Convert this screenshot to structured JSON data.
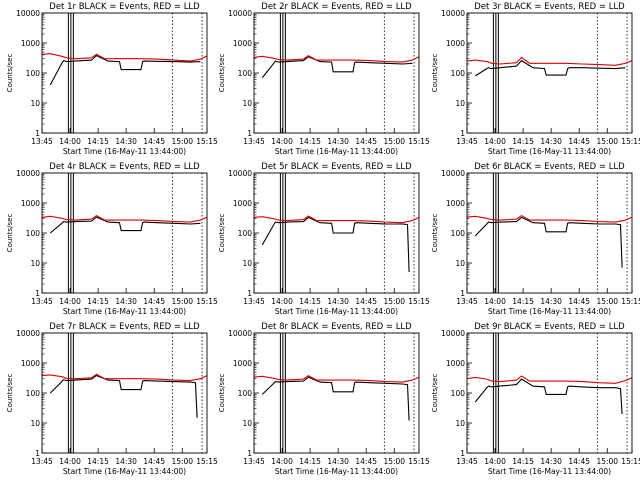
{
  "figure": {
    "xlabel": "Start Time (16-May-11 13:44:00)",
    "ylabel": "Counts/sec"
  },
  "chart_data": [
    {
      "type": "line",
      "title": "Det 1r BLACK = Events, RED = LLD",
      "xlabel": "Start Time (16-May-11 13:44:00)",
      "ylabel": "Counts/sec",
      "y_scale": "log",
      "ylim": [
        1,
        10000
      ],
      "xlim": [
        0,
        100
      ],
      "x_tick_labels": [
        "13:45",
        "14:00",
        "14:15",
        "14:30",
        "14:45",
        "15:00",
        "15:15"
      ],
      "y_tick_labels": [
        "1",
        "10",
        "100",
        "1000",
        "10000"
      ],
      "series": [
        {
          "name": "Events",
          "color": "#000000",
          "x": [
            5,
            12,
            13,
            15,
            20,
            30,
            33,
            40,
            47,
            48,
            60,
            61,
            62,
            70,
            80,
            90,
            96
          ],
          "y": [
            40,
            210,
            260,
            240,
            250,
            270,
            380,
            250,
            240,
            130,
            130,
            240,
            250,
            245,
            240,
            230,
            240
          ]
        },
        {
          "name": "LLD",
          "color": "#dd0000",
          "x": [
            0,
            5,
            12,
            15,
            20,
            30,
            33,
            38,
            50,
            60,
            70,
            80,
            90,
            96,
            100
          ],
          "y": [
            420,
            440,
            360,
            320,
            300,
            320,
            420,
            300,
            300,
            300,
            290,
            270,
            250,
            290,
            370
          ]
        }
      ]
    },
    {
      "type": "line",
      "title": "Det 2r BLACK = Events, RED = LLD",
      "xlabel": "Start Time (16-May-11 13:44:00)",
      "ylabel": "Counts/sec",
      "y_scale": "log",
      "ylim": [
        1,
        10000
      ],
      "xlim": [
        0,
        100
      ],
      "x_tick_labels": [
        "13:45",
        "14:00",
        "14:15",
        "14:30",
        "14:45",
        "15:00",
        "15:15"
      ],
      "y_tick_labels": [
        "1",
        "10",
        "100",
        "1000",
        "10000"
      ],
      "series": [
        {
          "name": "Events",
          "color": "#000000",
          "x": [
            5,
            12,
            13,
            15,
            20,
            30,
            33,
            40,
            47,
            48,
            60,
            61,
            62,
            70,
            80,
            90,
            96
          ],
          "y": [
            70,
            210,
            250,
            230,
            240,
            260,
            350,
            240,
            230,
            110,
            110,
            220,
            230,
            220,
            210,
            200,
            210
          ]
        },
        {
          "name": "LLD",
          "color": "#dd0000",
          "x": [
            0,
            5,
            12,
            15,
            20,
            30,
            33,
            38,
            50,
            60,
            70,
            80,
            90,
            96,
            100
          ],
          "y": [
            330,
            360,
            310,
            280,
            270,
            290,
            380,
            270,
            270,
            270,
            260,
            240,
            230,
            270,
            350
          ]
        }
      ]
    },
    {
      "type": "line",
      "title": "Det 3r BLACK = Events, RED = LLD",
      "xlabel": "Start Time (16-May-11 13:44:00)",
      "ylabel": "Counts/sec",
      "y_scale": "log",
      "ylim": [
        1,
        10000
      ],
      "xlim": [
        0,
        100
      ],
      "x_tick_labels": [
        "13:45",
        "14:00",
        "14:15",
        "14:30",
        "14:45",
        "15:00",
        "15:15"
      ],
      "y_tick_labels": [
        "1",
        "10",
        "100",
        "1000",
        "10000"
      ],
      "series": [
        {
          "name": "Events",
          "color": "#000000",
          "x": [
            5,
            12,
            13,
            15,
            20,
            30,
            33,
            40,
            47,
            48,
            60,
            61,
            62,
            70,
            80,
            90,
            96
          ],
          "y": [
            80,
            140,
            150,
            140,
            150,
            170,
            260,
            150,
            140,
            85,
            85,
            140,
            150,
            150,
            145,
            140,
            150
          ]
        },
        {
          "name": "LLD",
          "color": "#dd0000",
          "x": [
            0,
            5,
            12,
            15,
            20,
            30,
            33,
            38,
            50,
            60,
            70,
            80,
            90,
            96,
            100
          ],
          "y": [
            250,
            270,
            240,
            210,
            200,
            220,
            330,
            210,
            210,
            210,
            200,
            190,
            180,
            210,
            260
          ]
        }
      ]
    },
    {
      "type": "line",
      "title": "Det 4r BLACK = Events, RED = LLD",
      "xlabel": "Start Time (16-May-11 13:44:00)",
      "ylabel": "Counts/sec",
      "y_scale": "log",
      "ylim": [
        1,
        10000
      ],
      "xlim": [
        0,
        100
      ],
      "x_tick_labels": [
        "13:45",
        "14:00",
        "14:15",
        "14:30",
        "14:45",
        "15:00",
        "15:15"
      ],
      "y_tick_labels": [
        "1",
        "10",
        "100",
        "1000",
        "10000"
      ],
      "series": [
        {
          "name": "Events",
          "color": "#000000",
          "x": [
            5,
            12,
            13,
            15,
            20,
            30,
            33,
            40,
            47,
            48,
            60,
            61,
            62,
            70,
            80,
            90,
            96
          ],
          "y": [
            100,
            210,
            240,
            230,
            240,
            250,
            340,
            230,
            220,
            120,
            120,
            220,
            230,
            220,
            210,
            200,
            210
          ]
        },
        {
          "name": "LLD",
          "color": "#dd0000",
          "x": [
            0,
            5,
            12,
            15,
            20,
            30,
            33,
            38,
            50,
            60,
            70,
            80,
            90,
            96,
            100
          ],
          "y": [
            330,
            360,
            310,
            280,
            270,
            290,
            380,
            270,
            270,
            270,
            260,
            240,
            230,
            270,
            340
          ]
        }
      ]
    },
    {
      "type": "line",
      "title": "Det 5r BLACK = Events, RED = LLD",
      "xlabel": "Start Time (16-May-11 13:44:00)",
      "ylabel": "Counts/sec",
      "y_scale": "log",
      "ylim": [
        1,
        10000
      ],
      "xlim": [
        0,
        100
      ],
      "x_tick_labels": [
        "13:45",
        "14:00",
        "14:15",
        "14:30",
        "14:45",
        "15:00",
        "15:15"
      ],
      "y_tick_labels": [
        "1",
        "10",
        "100",
        "1000",
        "10000"
      ],
      "series": [
        {
          "name": "Events",
          "color": "#000000",
          "x": [
            5,
            12,
            13,
            15,
            20,
            30,
            33,
            40,
            47,
            48,
            60,
            61,
            62,
            70,
            80,
            90,
            93,
            94
          ],
          "y": [
            40,
            190,
            230,
            220,
            230,
            240,
            330,
            220,
            210,
            100,
            100,
            210,
            220,
            210,
            200,
            200,
            190,
            5
          ]
        },
        {
          "name": "LLD",
          "color": "#dd0000",
          "x": [
            0,
            5,
            12,
            15,
            20,
            30,
            33,
            38,
            50,
            60,
            70,
            80,
            90,
            96,
            100
          ],
          "y": [
            330,
            350,
            300,
            270,
            260,
            280,
            370,
            260,
            260,
            260,
            250,
            230,
            220,
            260,
            330
          ]
        }
      ]
    },
    {
      "type": "line",
      "title": "Det 6r BLACK = Events, RED = LLD",
      "xlabel": "Start Time (16-May-11 13:44:00)",
      "ylabel": "Counts/sec",
      "y_scale": "log",
      "ylim": [
        1,
        10000
      ],
      "xlim": [
        0,
        100
      ],
      "x_tick_labels": [
        "13:45",
        "14:00",
        "14:15",
        "14:30",
        "14:45",
        "15:00",
        "15:15"
      ],
      "y_tick_labels": [
        "1",
        "10",
        "100",
        "1000",
        "10000"
      ],
      "series": [
        {
          "name": "Events",
          "color": "#000000",
          "x": [
            5,
            12,
            13,
            15,
            20,
            30,
            33,
            40,
            47,
            48,
            60,
            61,
            62,
            70,
            80,
            90,
            93,
            94
          ],
          "y": [
            80,
            200,
            230,
            220,
            230,
            240,
            330,
            220,
            210,
            110,
            110,
            210,
            220,
            210,
            200,
            200,
            190,
            7
          ]
        },
        {
          "name": "LLD",
          "color": "#dd0000",
          "x": [
            0,
            5,
            12,
            15,
            20,
            30,
            33,
            38,
            50,
            60,
            70,
            80,
            90,
            96,
            100
          ],
          "y": [
            340,
            360,
            310,
            280,
            270,
            290,
            380,
            270,
            270,
            270,
            260,
            240,
            230,
            270,
            340
          ]
        }
      ]
    },
    {
      "type": "line",
      "title": "Det 7r BLACK = Events, RED = LLD",
      "xlabel": "Start Time (16-May-11 13:44:00)",
      "ylabel": "Counts/sec",
      "y_scale": "log",
      "ylim": [
        1,
        10000
      ],
      "xlim": [
        0,
        100
      ],
      "x_tick_labels": [
        "13:45",
        "14:00",
        "14:15",
        "14:30",
        "14:45",
        "15:00",
        "15:15"
      ],
      "y_tick_labels": [
        "1",
        "10",
        "100",
        "1000",
        "10000"
      ],
      "series": [
        {
          "name": "Events",
          "color": "#000000",
          "x": [
            5,
            12,
            13,
            15,
            20,
            30,
            33,
            40,
            47,
            48,
            60,
            61,
            62,
            70,
            80,
            90,
            93,
            94
          ],
          "y": [
            100,
            240,
            280,
            260,
            270,
            290,
            380,
            270,
            260,
            130,
            130,
            250,
            260,
            250,
            240,
            230,
            220,
            15
          ]
        },
        {
          "name": "LLD",
          "color": "#dd0000",
          "x": [
            0,
            5,
            12,
            15,
            20,
            30,
            33,
            38,
            50,
            60,
            70,
            80,
            90,
            96,
            100
          ],
          "y": [
            380,
            400,
            350,
            310,
            300,
            320,
            420,
            300,
            300,
            300,
            290,
            270,
            260,
            300,
            380
          ]
        }
      ]
    },
    {
      "type": "line",
      "title": "Det 8r BLACK = Events, RED = LLD",
      "xlabel": "Start Time (16-May-11 13:44:00)",
      "ylabel": "Counts/sec",
      "y_scale": "log",
      "ylim": [
        1,
        10000
      ],
      "xlim": [
        0,
        100
      ],
      "x_tick_labels": [
        "13:45",
        "14:00",
        "14:15",
        "14:30",
        "14:45",
        "15:00",
        "15:15"
      ],
      "y_tick_labels": [
        "1",
        "10",
        "100",
        "1000",
        "10000"
      ],
      "series": [
        {
          "name": "Events",
          "color": "#000000",
          "x": [
            5,
            12,
            13,
            15,
            20,
            30,
            33,
            40,
            47,
            48,
            60,
            61,
            62,
            70,
            80,
            90,
            93,
            94
          ],
          "y": [
            90,
            210,
            240,
            230,
            240,
            250,
            340,
            230,
            220,
            110,
            110,
            220,
            230,
            220,
            210,
            200,
            190,
            12
          ]
        },
        {
          "name": "LLD",
          "color": "#dd0000",
          "x": [
            0,
            5,
            12,
            15,
            20,
            30,
            33,
            38,
            50,
            60,
            70,
            80,
            90,
            96,
            100
          ],
          "y": [
            340,
            360,
            310,
            280,
            270,
            290,
            380,
            270,
            270,
            270,
            260,
            240,
            230,
            270,
            340
          ]
        }
      ]
    },
    {
      "type": "line",
      "title": "Det 9r BLACK = Events, RED = LLD",
      "xlabel": "Start Time (16-May-11 13:44:00)",
      "ylabel": "Counts/sec",
      "y_scale": "log",
      "ylim": [
        1,
        10000
      ],
      "xlim": [
        0,
        100
      ],
      "x_tick_labels": [
        "13:45",
        "14:00",
        "14:15",
        "14:30",
        "14:45",
        "15:00",
        "15:15"
      ],
      "y_tick_labels": [
        "1",
        "10",
        "100",
        "1000",
        "10000"
      ],
      "series": [
        {
          "name": "Events",
          "color": "#000000",
          "x": [
            5,
            12,
            13,
            15,
            20,
            30,
            33,
            40,
            47,
            48,
            60,
            61,
            62,
            70,
            80,
            90,
            93,
            94
          ],
          "y": [
            50,
            150,
            170,
            160,
            170,
            190,
            290,
            170,
            160,
            90,
            90,
            160,
            170,
            160,
            150,
            150,
            140,
            20
          ]
        },
        {
          "name": "LLD",
          "color": "#dd0000",
          "x": [
            0,
            5,
            12,
            15,
            20,
            30,
            33,
            38,
            50,
            60,
            70,
            80,
            90,
            96,
            100
          ],
          "y": [
            300,
            330,
            290,
            250,
            240,
            270,
            370,
            250,
            250,
            250,
            240,
            220,
            210,
            260,
            320
          ]
        }
      ]
    }
  ]
}
